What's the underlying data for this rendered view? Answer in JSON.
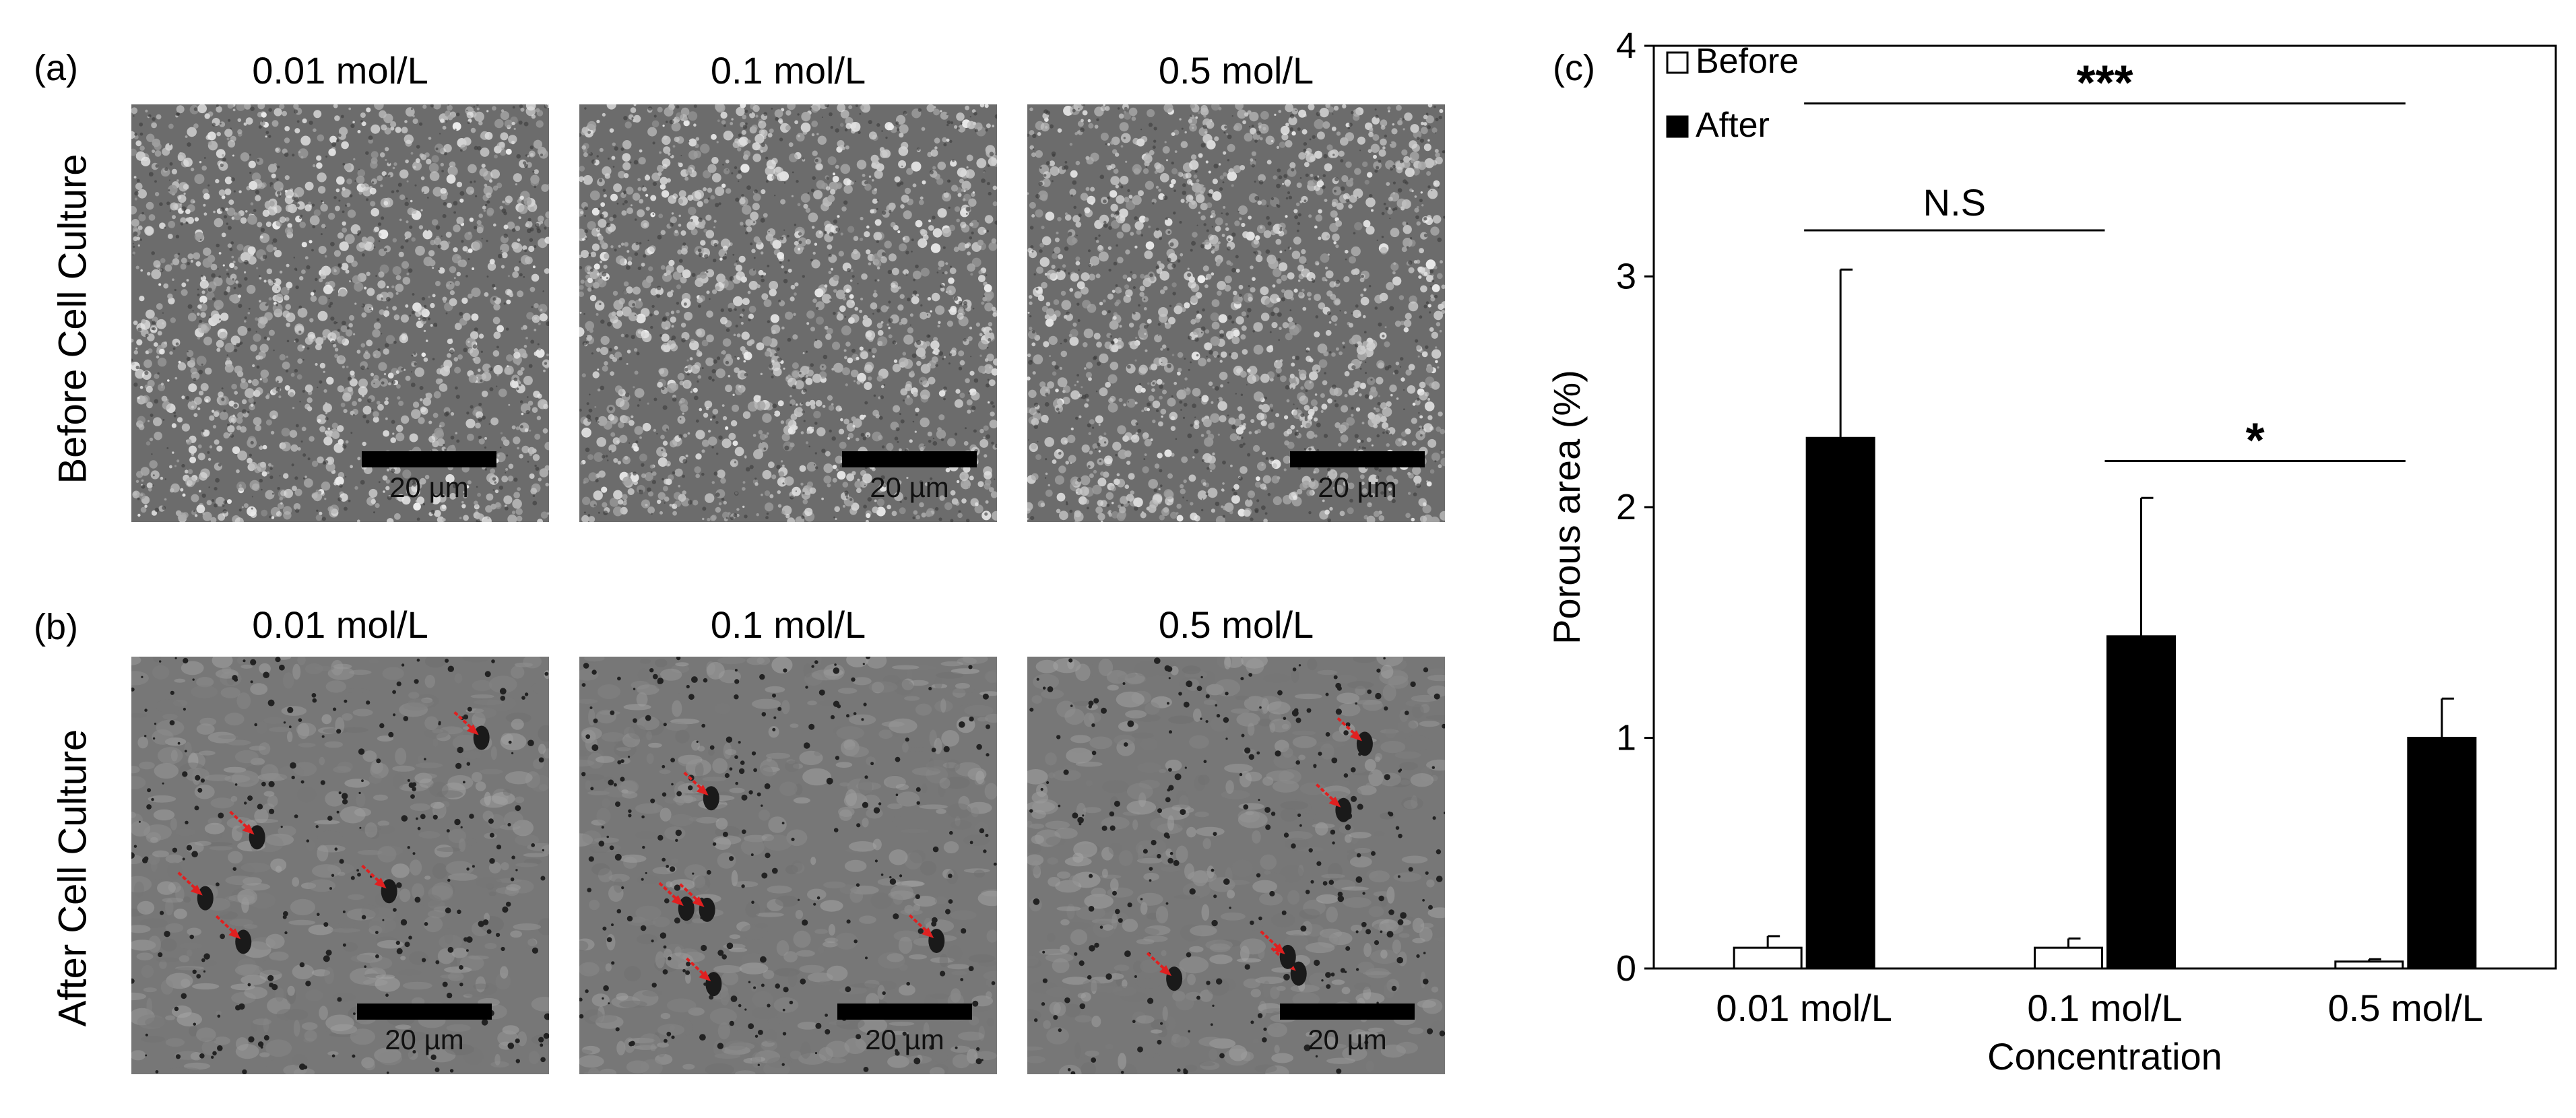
{
  "panels": {
    "a": {
      "letter": "(a)",
      "row_label": "Before Cell Culture",
      "images": [
        {
          "title": "0.01 mol/L",
          "scale_label": "20 µm"
        },
        {
          "title": "0.1 mol/L",
          "scale_label": "20 µm"
        },
        {
          "title": "0.5 mol/L",
          "scale_label": "20 µm"
        }
      ]
    },
    "b": {
      "letter": "(b)",
      "row_label": "After Cell Culture",
      "images": [
        {
          "title": "0.01 mol/L",
          "scale_label": "20 µm"
        },
        {
          "title": "0.1 mol/L",
          "scale_label": "20 µm"
        },
        {
          "title": "0.5 mol/L",
          "scale_label": "20 µm"
        }
      ]
    },
    "c": {
      "letter": "(c)"
    }
  },
  "colors": {
    "sem_base": "#7a7a7a",
    "arrow": "#e02020",
    "before_bar": "#ffffff",
    "after_bar": "#000000"
  },
  "chart_data": {
    "type": "bar",
    "categories": [
      "0.01 mol/L",
      "0.1 mol/L",
      "0.5 mol/L"
    ],
    "series": [
      {
        "name": "Before",
        "values": [
          0.09,
          0.09,
          0.03
        ],
        "errors": [
          0.05,
          0.04,
          0.01
        ],
        "color": "#ffffff"
      },
      {
        "name": "After",
        "values": [
          2.3,
          1.44,
          1.0
        ],
        "errors": [
          0.73,
          0.6,
          0.17
        ],
        "color": "#000000"
      }
    ],
    "xlabel": "Concentration",
    "ylabel": "Porous area (%)",
    "ylim": [
      0,
      4
    ],
    "yticks": [
      "0",
      "1",
      "2",
      "3",
      "4"
    ],
    "grid": false,
    "legend_position": "top-left",
    "significance": [
      {
        "label": "***",
        "from": "0.01 mol/L",
        "to": "0.5 mol/L"
      },
      {
        "label": "N.S",
        "from": "0.01 mol/L",
        "to": "0.1 mol/L"
      },
      {
        "label": "*",
        "from": "0.1 mol/L",
        "to": "0.5 mol/L"
      }
    ]
  }
}
